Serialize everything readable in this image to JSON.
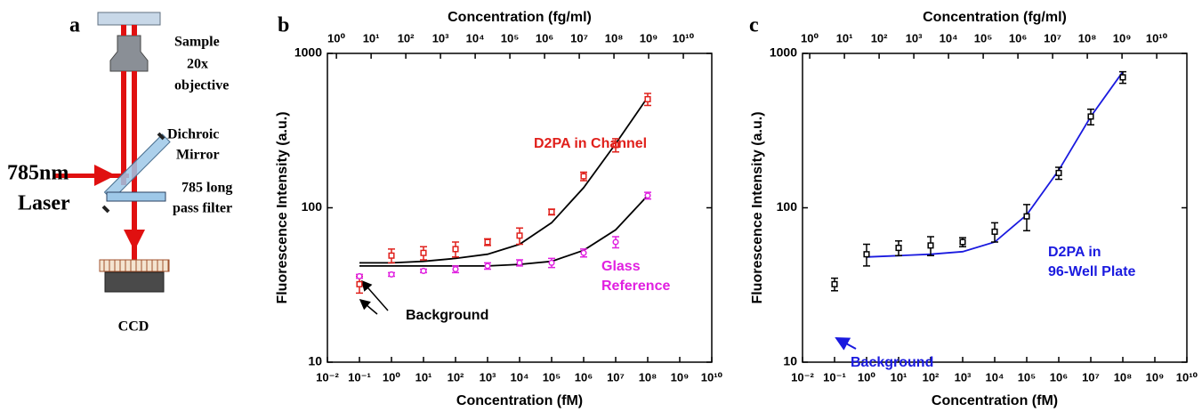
{
  "panels": {
    "a": "a",
    "b": "b",
    "c": "c"
  },
  "diagram": {
    "sample": "Sample",
    "objective_1": "20x",
    "objective_2": "objective",
    "mirror_1": "Dichroic",
    "mirror_2": "Mirror",
    "laser_1": "785nm",
    "laser_2": "Laser",
    "filter_1": "785 long",
    "filter_2": "pass filter",
    "detector": "CCD"
  },
  "chart_data": [
    {
      "type": "scatter",
      "xscale": "log",
      "yscale": "log",
      "xlabel": "Concentration (fM)",
      "x2label": "Concentration (fg/ml)",
      "ylabel": "Fluorescence Intensity (a.u.)",
      "x": [
        0.1,
        1,
        10,
        100,
        1000,
        10000,
        100000,
        1000000,
        10000000,
        100000000
      ],
      "xlim": [
        0.01,
        10000000000
      ],
      "xticks": [
        {
          "value": 0.01,
          "label": "10⁻²"
        },
        {
          "value": 0.1,
          "label": "10⁻¹"
        },
        {
          "value": 1,
          "label": "10⁰"
        },
        {
          "value": 10,
          "label": "10¹"
        },
        {
          "value": 100,
          "label": "10²"
        },
        {
          "value": 1000,
          "label": "10³"
        },
        {
          "value": 10000,
          "label": "10⁴"
        },
        {
          "value": 100000,
          "label": "10⁵"
        },
        {
          "value": 1000000,
          "label": "10⁶"
        },
        {
          "value": 10000000,
          "label": "10⁷"
        },
        {
          "value": 100000000,
          "label": "10⁸"
        },
        {
          "value": 1000000000,
          "label": "10⁹"
        },
        {
          "value": 10000000000,
          "label": "10¹⁰"
        }
      ],
      "x2lim": [
        0.55,
        66000000000
      ],
      "x2ticks": [
        {
          "value": 1,
          "label": "10⁰"
        },
        {
          "value": 10,
          "label": "10¹"
        },
        {
          "value": 100,
          "label": "10²"
        },
        {
          "value": 1000,
          "label": "10³"
        },
        {
          "value": 10000,
          "label": "10⁴"
        },
        {
          "value": 100000,
          "label": "10⁵"
        },
        {
          "value": 1000000,
          "label": "10⁶"
        },
        {
          "value": 10000000,
          "label": "10⁷"
        },
        {
          "value": 100000000,
          "label": "10⁸"
        },
        {
          "value": 1000000000,
          "label": "10⁹"
        },
        {
          "value": 10000000000,
          "label": "10¹⁰"
        }
      ],
      "ylim": [
        10,
        1000
      ],
      "yticks": [
        10,
        100,
        1000
      ],
      "series": [
        {
          "color": "#e0201b",
          "marker": "square",
          "values": [
            32,
            49,
            51,
            54,
            60,
            66,
            94,
            160,
            255,
            505
          ],
          "errors": [
            4,
            5,
            5,
            6,
            3,
            8,
            4,
            10,
            25,
            45
          ]
        },
        {
          "color": "#e020e0",
          "marker": "circle",
          "values": [
            36,
            37,
            39,
            40,
            42,
            44,
            44,
            51,
            60,
            120
          ],
          "errors": [
            1,
            1,
            1,
            2,
            2,
            2,
            3,
            3,
            5,
            6
          ]
        }
      ],
      "fits": [
        {
          "color": "#000000",
          "values": [
            44,
            44,
            45,
            47,
            50,
            58,
            80,
            135,
            260,
            520
          ]
        },
        {
          "color": "#000000",
          "values": [
            42,
            42,
            42,
            42,
            42,
            43,
            45,
            53,
            72,
            120
          ]
        }
      ],
      "annotations": [
        {
          "text": "D2PA in Channel",
          "color": "#e0201b"
        },
        {
          "text": "Glass",
          "color": "#e020e0"
        },
        {
          "text": "Reference",
          "color": "#e020e0"
        },
        {
          "text": "Background",
          "color": "#000000"
        }
      ]
    },
    {
      "type": "scatter",
      "xscale": "log",
      "yscale": "log",
      "xlabel": "Concentration (fM)",
      "x2label": "Concentration (fg/ml)",
      "ylabel": "Fluorescence Intensity (a.u.)",
      "x": [
        0.1,
        1,
        10,
        100,
        1000,
        10000,
        100000,
        1000000,
        10000000,
        100000000
      ],
      "xlim": [
        0.01,
        10000000000
      ],
      "xticks": [
        {
          "value": 0.01,
          "label": "10⁻²"
        },
        {
          "value": 0.1,
          "label": "10⁻¹"
        },
        {
          "value": 1,
          "label": "10⁰"
        },
        {
          "value": 10,
          "label": "10¹"
        },
        {
          "value": 100,
          "label": "10²"
        },
        {
          "value": 1000,
          "label": "10³"
        },
        {
          "value": 10000,
          "label": "10⁴"
        },
        {
          "value": 100000,
          "label": "10⁵"
        },
        {
          "value": 1000000,
          "label": "10⁶"
        },
        {
          "value": 10000000,
          "label": "10⁷"
        },
        {
          "value": 100000000,
          "label": "10⁸"
        },
        {
          "value": 1000000000,
          "label": "10⁹"
        },
        {
          "value": 10000000000,
          "label": "10¹⁰"
        }
      ],
      "x2lim": [
        0.62,
        74000000000
      ],
      "x2ticks": [
        {
          "value": 1,
          "label": "10⁰"
        },
        {
          "value": 10,
          "label": "10¹"
        },
        {
          "value": 100,
          "label": "10²"
        },
        {
          "value": 1000,
          "label": "10³"
        },
        {
          "value": 10000,
          "label": "10⁴"
        },
        {
          "value": 100000,
          "label": "10⁵"
        },
        {
          "value": 1000000,
          "label": "10⁶"
        },
        {
          "value": 10000000,
          "label": "10⁷"
        },
        {
          "value": 100000000,
          "label": "10⁸"
        },
        {
          "value": 1000000000,
          "label": "10⁹"
        },
        {
          "value": 10000000000,
          "label": "10¹⁰"
        }
      ],
      "ylim": [
        10,
        1000
      ],
      "yticks": [
        10,
        100,
        1000
      ],
      "series": [
        {
          "color": "#000000",
          "marker": "square",
          "values": [
            32,
            50,
            55,
            57,
            60,
            70,
            88,
            168,
            390,
            700
          ],
          "errors": [
            3,
            8,
            6,
            8,
            4,
            10,
            17,
            15,
            45,
            60
          ]
        }
      ],
      "fits": [
        {
          "color": "#1a1adf",
          "values": [
            null,
            48,
            49,
            50,
            52,
            60,
            90,
            175,
            390,
            760
          ]
        }
      ],
      "annotations": [
        {
          "text": "D2PA in",
          "color": "#1a1adf"
        },
        {
          "text": "96-Well Plate",
          "color": "#1a1adf"
        },
        {
          "text": "Background",
          "color": "#1a1adf"
        }
      ]
    }
  ]
}
